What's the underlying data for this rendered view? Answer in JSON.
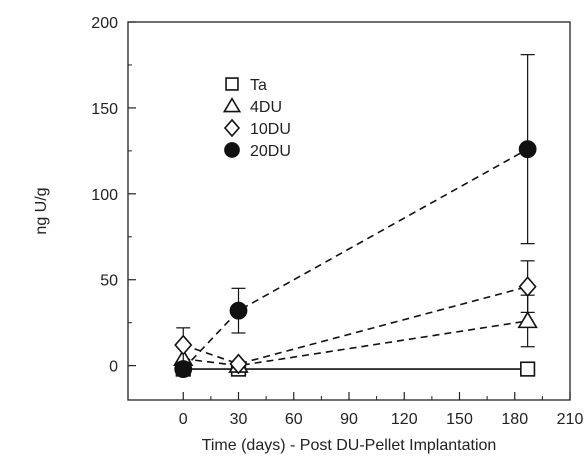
{
  "chart_data": {
    "type": "scatter",
    "xlabel": "Time (days) - Post DU-Pellet Implantation",
    "ylabel": "ng U/g",
    "xlim": [
      -30,
      210
    ],
    "ylim": [
      -20,
      200
    ],
    "xticks": [
      0,
      30,
      60,
      90,
      120,
      150,
      180,
      210
    ],
    "yticks": [
      0,
      50,
      100,
      150,
      200
    ],
    "xtick_labels": [
      "0",
      "30",
      "60",
      "90",
      "120",
      "150",
      "180",
      "210"
    ],
    "ytick_labels": [
      "0",
      "50",
      "100",
      "150",
      "200"
    ],
    "grid": false,
    "legend_position": "upper-left-inside",
    "series": [
      {
        "name": "Ta",
        "marker": "open-square",
        "line": "solid",
        "x": [
          0,
          30,
          187
        ],
        "y": [
          -2,
          -2,
          -2
        ],
        "error": [
          null,
          null,
          null
        ]
      },
      {
        "name": "4DU",
        "marker": "open-triangle",
        "line": "dashed",
        "x": [
          0,
          30,
          187
        ],
        "y": [
          4,
          0,
          26
        ],
        "error": [
          null,
          null,
          15
        ]
      },
      {
        "name": "10DU",
        "marker": "open-diamond",
        "line": "dashed",
        "x": [
          0,
          30,
          187
        ],
        "y": [
          12,
          1,
          46
        ],
        "error": [
          10,
          null,
          15
        ]
      },
      {
        "name": "20DU",
        "marker": "filled-circle",
        "line": "dashed",
        "x": [
          0,
          30,
          187
        ],
        "y": [
          -2,
          32,
          126
        ],
        "error": [
          null,
          13,
          55
        ]
      }
    ]
  }
}
